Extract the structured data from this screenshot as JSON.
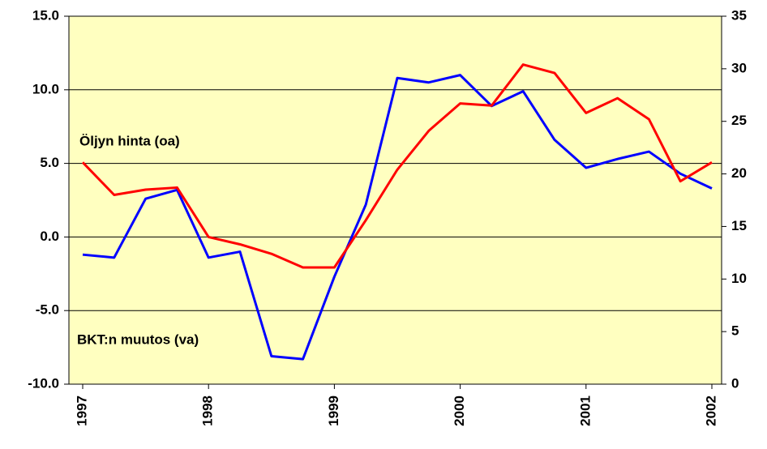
{
  "chart_data": {
    "type": "line",
    "categories": [
      "1997",
      null,
      null,
      null,
      "1998",
      null,
      null,
      null,
      "1999",
      null,
      null,
      null,
      "2000",
      null,
      null,
      null,
      "2001",
      null,
      null,
      null,
      "2002"
    ],
    "series": [
      {
        "name": "BKT:n muutos (va)",
        "color": "#0000ff",
        "axis": "y",
        "values": [
          -1.2,
          -1.4,
          2.6,
          3.2,
          -1.4,
          -1.0,
          -8.1,
          -8.3,
          -2.7,
          2.2,
          10.8,
          10.5,
          11.0,
          8.9,
          9.9,
          6.6,
          4.7,
          5.3,
          5.8,
          4.3,
          3.3
        ]
      },
      {
        "name": "Öljyn hinta (oa)",
        "color": "#ff0000",
        "axis": "y2",
        "values": [
          21.1,
          18.0,
          18.5,
          18.7,
          14.0,
          13.3,
          12.4,
          11.1,
          11.1,
          15.6,
          20.4,
          24.1,
          26.7,
          26.5,
          30.4,
          29.6,
          25.8,
          27.2,
          25.2,
          19.3,
          21.1
        ]
      }
    ],
    "ylim": [
      -10,
      15
    ],
    "yticks": [
      {
        "value": -10,
        "label": "-10.0"
      },
      {
        "value": -5,
        "label": "-5.0"
      },
      {
        "value": 0,
        "label": "0.0"
      },
      {
        "value": 5,
        "label": "5.0"
      },
      {
        "value": 10,
        "label": "10.0"
      },
      {
        "value": 15,
        "label": "15.0"
      }
    ],
    "y2lim": [
      0,
      35
    ],
    "y2ticks": [
      0,
      5,
      10,
      15,
      20,
      25,
      30,
      35
    ],
    "grid": true,
    "background": "#ffffc0"
  }
}
